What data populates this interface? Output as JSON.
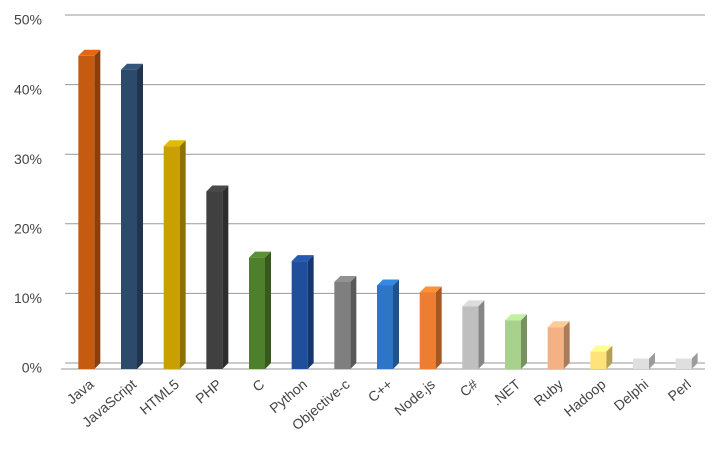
{
  "chart_data": {
    "type": "bar",
    "categories": [
      "Java",
      "JavaScript",
      "HTML5",
      "PHP",
      "C",
      "Python",
      "Objective-c",
      "C++",
      "Node.js",
      "C#",
      ".NET",
      "Ruby",
      "Hadoop",
      "Delphi",
      "Perl"
    ],
    "values": [
      45,
      43,
      32,
      25.5,
      16,
      15.5,
      12.5,
      12,
      11,
      9,
      7,
      6,
      2.5,
      1.5,
      1.5
    ],
    "colors": [
      "#c55a11",
      "#2e4a6b",
      "#c9a000",
      "#404040",
      "#4e7f2c",
      "#1f4e9c",
      "#7f7f7f",
      "#2e75c6",
      "#ed7d31",
      "#bfbfbf",
      "#a9d18e",
      "#f4b183",
      "#ffe37a",
      "#e0dfdf",
      "#e0dfdf"
    ],
    "ylim": [
      0,
      50
    ],
    "yticks": [
      {
        "value": 0,
        "label": "0%"
      },
      {
        "value": 10,
        "label": "10%"
      },
      {
        "value": 20,
        "label": "20%"
      },
      {
        "value": 30,
        "label": "30%"
      },
      {
        "value": 40,
        "label": "40%"
      },
      {
        "value": 50,
        "label": "50%"
      }
    ],
    "grid": true
  }
}
